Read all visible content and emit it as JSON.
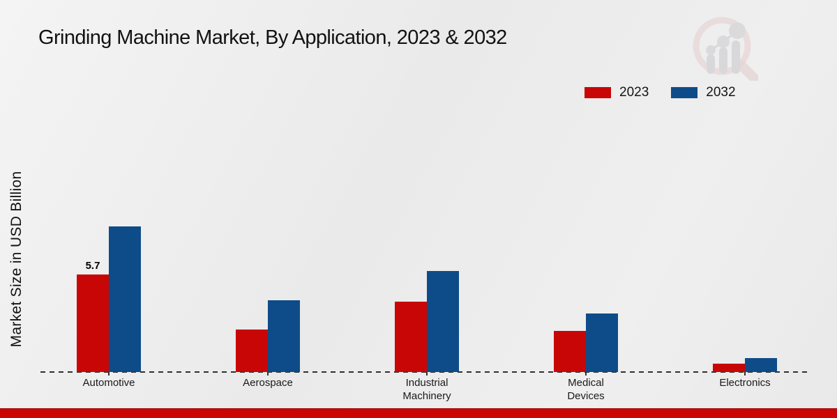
{
  "title": "Grinding Machine Market, By Application, 2023 & 2032",
  "ylabel": "Market Size in USD Billion",
  "legend": {
    "items": [
      {
        "label": "2023",
        "color": "#c90606"
      },
      {
        "label": "2032",
        "color": "#0d4c88"
      }
    ]
  },
  "watermark": {
    "icon": "magnifier-bar-chart-logo"
  },
  "footer": {
    "accent_color": "#cb0404"
  },
  "chart_data": {
    "type": "bar",
    "title": "Grinding Machine Market, By Application, 2023 & 2032",
    "xlabel": "",
    "ylabel": "Market Size in USD Billion",
    "categories": [
      "Automotive",
      "Aerospace",
      "Industrial\nMachinery",
      "Medical\nDevices",
      "Electronics"
    ],
    "series": [
      {
        "name": "2023",
        "color": "#c90606",
        "values": [
          5.7,
          2.5,
          4.1,
          2.4,
          0.5
        ]
      },
      {
        "name": "2032",
        "color": "#0d4c88",
        "values": [
          8.5,
          4.2,
          5.9,
          3.4,
          0.8
        ]
      }
    ],
    "bar_labels": [
      {
        "series_index": 0,
        "category_index": 0,
        "text": "5.7"
      }
    ],
    "ylim": [
      0,
      9
    ],
    "grid": false,
    "axis_line_style": "dashed-zero-line",
    "legend_position": "top-right"
  }
}
